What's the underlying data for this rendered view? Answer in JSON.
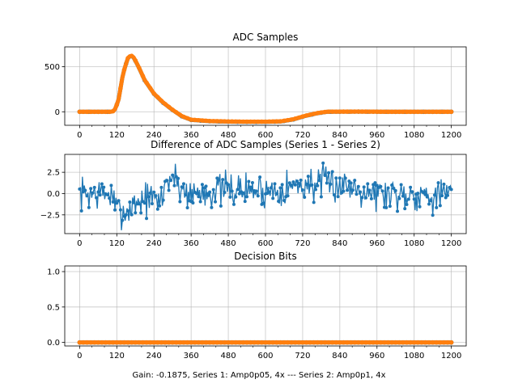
{
  "figure_caption": "Gain: -0.1875, Series 1: Amp0p05, 4x --- Series 2: Amp0p1, 4x",
  "colors": {
    "series1": "#1f77b4",
    "series2": "#ff7f0e"
  },
  "chart_data": [
    {
      "type": "scatter",
      "title": "ADC Samples",
      "x_range": [
        0,
        1200
      ],
      "xlim": [
        -48,
        1248
      ],
      "ylim": [
        -150,
        720
      ],
      "xticks": [
        "0",
        "120",
        "240",
        "360",
        "480",
        "600",
        "720",
        "840",
        "960",
        "1080",
        "1200"
      ],
      "yticks": [
        "0",
        "500"
      ],
      "ytick_values": [
        0,
        500
      ],
      "grid": true,
      "series": [
        {
          "name": "Series 1",
          "color": "#1f77b4",
          "points": [
            [
              0,
              0
            ],
            [
              100,
              0
            ],
            [
              112,
              10
            ],
            [
              125,
              120
            ],
            [
              140,
              420
            ],
            [
              155,
              590
            ],
            [
              165,
              625
            ],
            [
              175,
              600
            ],
            [
              190,
              500
            ],
            [
              210,
              350
            ],
            [
              240,
              200
            ],
            [
              270,
              100
            ],
            [
              300,
              20
            ],
            [
              330,
              -50
            ],
            [
              360,
              -90
            ],
            [
              420,
              -105
            ],
            [
              480,
              -110
            ],
            [
              540,
              -112
            ],
            [
              600,
              -112
            ],
            [
              650,
              -108
            ],
            [
              690,
              -85
            ],
            [
              730,
              -45
            ],
            [
              770,
              -15
            ],
            [
              800,
              0
            ],
            [
              900,
              2
            ],
            [
              1000,
              0
            ],
            [
              1100,
              0
            ],
            [
              1200,
              0
            ]
          ]
        },
        {
          "name": "Series 2",
          "color": "#ff7f0e",
          "points": [
            [
              0,
              0
            ],
            [
              100,
              0
            ],
            [
              112,
              10
            ],
            [
              125,
              120
            ],
            [
              140,
              420
            ],
            [
              155,
              592
            ],
            [
              165,
              627
            ],
            [
              175,
              602
            ],
            [
              190,
              502
            ],
            [
              210,
              352
            ],
            [
              240,
              202
            ],
            [
              270,
              102
            ],
            [
              300,
              22
            ],
            [
              330,
              -48
            ],
            [
              360,
              -88
            ],
            [
              420,
              -103
            ],
            [
              480,
              -108
            ],
            [
              540,
              -110
            ],
            [
              600,
              -110
            ],
            [
              650,
              -106
            ],
            [
              690,
              -83
            ],
            [
              730,
              -43
            ],
            [
              770,
              -13
            ],
            [
              800,
              1
            ],
            [
              900,
              2
            ],
            [
              1000,
              0
            ],
            [
              1100,
              0
            ],
            [
              1200,
              0
            ]
          ]
        }
      ]
    },
    {
      "type": "line",
      "title": "Difference of ADC Samples (Series 1 - Series 2)",
      "x_range": [
        0,
        1200
      ],
      "xlim": [
        -48,
        1248
      ],
      "ylim": [
        -4.7,
        4.6
      ],
      "xticks": [
        "0",
        "120",
        "240",
        "360",
        "480",
        "600",
        "720",
        "840",
        "960",
        "1080",
        "1200"
      ],
      "yticks": [
        "−2.5",
        "0.0",
        "2.5"
      ],
      "ytick_values": [
        -2.5,
        0,
        2.5
      ],
      "grid": true,
      "series": [
        {
          "name": "Difference",
          "color": "#1f77b4",
          "marker": "o",
          "trend": [
            [
              0,
              0
            ],
            [
              100,
              0
            ],
            [
              120,
              -2
            ],
            [
              150,
              -2.2
            ],
            [
              180,
              -1
            ],
            [
              220,
              -0.5
            ],
            [
              260,
              -1
            ],
            [
              280,
              1.5
            ],
            [
              300,
              2
            ],
            [
              330,
              0.5
            ],
            [
              360,
              0
            ],
            [
              480,
              0.5
            ],
            [
              600,
              0.3
            ],
            [
              720,
              1
            ],
            [
              800,
              1.2
            ],
            [
              900,
              0.8
            ],
            [
              960,
              0
            ],
            [
              1080,
              0
            ],
            [
              1200,
              -0.2
            ]
          ],
          "noise_amplitude": 1.0,
          "seed": 7
        }
      ]
    },
    {
      "type": "scatter",
      "title": "Decision Bits",
      "x_range": [
        0,
        1200
      ],
      "xlim": [
        -48,
        1248
      ],
      "ylim": [
        -0.05,
        1.08
      ],
      "xticks": [
        "0",
        "120",
        "240",
        "360",
        "480",
        "600",
        "720",
        "840",
        "960",
        "1080",
        "1200"
      ],
      "yticks": [
        "0.0",
        "0.5",
        "1.0"
      ],
      "ytick_values": [
        0,
        0.5,
        1.0
      ],
      "grid": true,
      "series": [
        {
          "name": "Series 1",
          "color": "#1f77b4",
          "points": [
            [
              0,
              0
            ],
            [
              1200,
              0
            ]
          ]
        },
        {
          "name": "Series 2",
          "color": "#ff7f0e",
          "points": [
            [
              0,
              0
            ],
            [
              1200,
              0
            ]
          ]
        }
      ]
    }
  ]
}
